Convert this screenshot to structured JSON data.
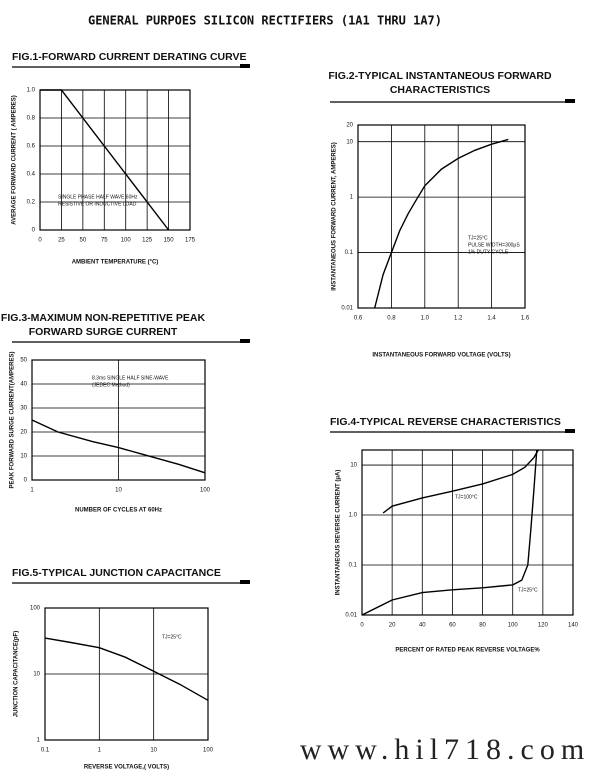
{
  "header": {
    "title": "GENERAL PURPOES SILICON RECTIFIERS (1A1 THRU 1A7)"
  },
  "watermark": "www.hil718.com",
  "chart_data": [
    {
      "type": "line",
      "title": [
        "FIG.1-FORWARD CURRENT DERATING CURVE"
      ],
      "ylabel": "AVERAGE FORWARD CURRENT ( AMPERES)",
      "xlabel": "AMBIENT TEMPERATURE (°C)",
      "xlim": [
        0,
        175
      ],
      "xticks": [
        0,
        25,
        50,
        75,
        100,
        125,
        150,
        175
      ],
      "ylim": [
        0,
        1
      ],
      "yticks": [
        0,
        0.2,
        0.4,
        0.6,
        0.8,
        {
          "value": 1,
          "label": "1.0"
        }
      ],
      "grid": true,
      "color": "#000",
      "annotation": [
        "SINGLE PHASE HALF WAVE 60Hz",
        "RESISTIVE OR INDUCTIVE LOAD"
      ],
      "series": [
        {
          "x": [
            0,
            25,
            150
          ],
          "values": [
            1,
            1,
            0
          ]
        }
      ]
    },
    {
      "type": "line",
      "title": [
        "FIG.2-TYPICAL INSTANTANEOUS FORWARD",
        "CHARACTERISTICS"
      ],
      "ylabel": "INSTANTANEOUS FORWARD CURRENT, AMPERES)",
      "xlabel": "INSTANTANEOUS FORWARD VOLTAGE (VOLTS)",
      "xlim": [
        0.6,
        1.6
      ],
      "xticks": [
        0.6,
        0.8,
        {
          "value": 1,
          "label": "1.0"
        },
        1.2,
        1.4,
        1.6
      ],
      "ylim": [
        0.01,
        20
      ],
      "yticks": [
        0.01,
        0.1,
        1,
        10,
        20
      ],
      "yscale": "log",
      "grid": true,
      "color": "#000",
      "annotation": [
        "TJ=25°C",
        "PULSE WIDTH=300μS",
        "1% DUTY CYCLE"
      ],
      "series": [
        {
          "x": [
            0.7,
            0.75,
            0.8,
            0.85,
            0.9,
            0.95,
            1.0,
            1.1,
            1.2,
            1.3,
            1.4,
            1.5
          ],
          "values": [
            0.01,
            0.04,
            0.1,
            0.25,
            0.5,
            0.9,
            1.6,
            3.2,
            5,
            7,
            9,
            11
          ]
        }
      ]
    },
    {
      "type": "line",
      "title": [
        "FIG.3-MAXIMUM NON-REPETITIVE PEAK",
        "FORWARD SURGE CURRENT"
      ],
      "ylabel": "PEAK FORWARD SURGE CURRENT(AMPERES)",
      "xlabel": "NUMBER OF CYCLES AT 60Hz",
      "xlim": [
        1,
        100
      ],
      "xticks": [
        1,
        10,
        100
      ],
      "xscale": "log",
      "ylim": [
        0,
        50
      ],
      "yticks": [
        0,
        10,
        20,
        30,
        40,
        50
      ],
      "grid": true,
      "color": "#000",
      "annotation": [
        "8.3ms SINGLE HALF SINE-WAVE",
        "(JEDEC Method)"
      ],
      "series": [
        {
          "x": [
            1,
            2,
            5,
            10,
            20,
            50,
            100
          ],
          "values": [
            25,
            20,
            16,
            13.5,
            10.5,
            6.5,
            3
          ]
        }
      ]
    },
    {
      "type": "line",
      "title": [
        "FIG.4-TYPICAL REVERSE CHARACTERISTICS"
      ],
      "ylabel": "INSTANTANEOUS REVERSE CURRENT (μA)",
      "xlabel": "PERCENT OF RATED PEAK REVERSE VOLTAGE%",
      "xlim": [
        0,
        140
      ],
      "xticks": [
        0,
        20,
        40,
        60,
        80,
        100,
        120,
        140
      ],
      "ylim": [
        0.01,
        20
      ],
      "yticks": [
        0.01,
        0.1,
        {
          "value": 1,
          "label": "1.0"
        },
        10
      ],
      "yscale": "log",
      "grid": true,
      "color": "#000",
      "series": [
        {
          "name": "TJ=100°C",
          "x": [
            14,
            20,
            40,
            60,
            80,
            100,
            108,
            114,
            117
          ],
          "values": [
            1.1,
            1.5,
            2.2,
            3,
            4.2,
            6.5,
            9,
            14,
            20
          ]
        },
        {
          "name": "TJ=25°C",
          "x": [
            0,
            20,
            40,
            60,
            80,
            100,
            106,
            110,
            112,
            114,
            116
          ],
          "values": [
            0.01,
            0.02,
            0.028,
            0.032,
            0.035,
            0.04,
            0.05,
            0.1,
            0.5,
            3,
            20
          ]
        }
      ]
    },
    {
      "type": "line",
      "title": [
        "FIG.5-TYPICAL JUNCTION CAPACITANCE"
      ],
      "ylabel": "JUNCTION CAPACITANCE(pF)",
      "xlabel": "REVERSE VOLTAGE,( VOLTS)",
      "xlim": [
        0.1,
        100
      ],
      "xticks": [
        0.1,
        1,
        10,
        100
      ],
      "xscale": "log",
      "ylim": [
        1,
        100
      ],
      "yticks": [
        1,
        10,
        100
      ],
      "yscale": "log",
      "grid": true,
      "color": "#000",
      "annotation": [
        "TJ=25°C"
      ],
      "series": [
        {
          "x": [
            0.1,
            0.3,
            1,
            3,
            10,
            30,
            100
          ],
          "values": [
            35,
            30,
            25,
            18,
            11,
            7,
            4
          ]
        }
      ]
    }
  ]
}
